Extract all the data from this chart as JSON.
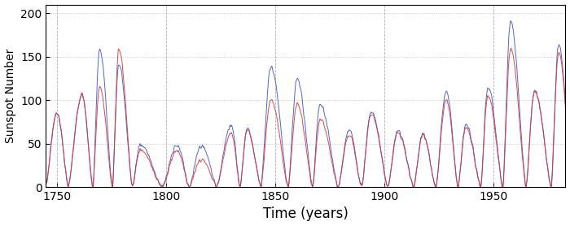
{
  "title": "",
  "xlabel": "Time (years)",
  "ylabel": "Sunspot Number",
  "xlim": [
    1745,
    1983
  ],
  "ylim": [
    0,
    210
  ],
  "yticks": [
    0,
    50,
    100,
    150,
    200
  ],
  "xticks": [
    1750,
    1800,
    1850,
    1900,
    1950
  ],
  "grid_color": "#aaaaaa",
  "vline_color": "#8888aa",
  "vlines": [
    1750,
    1800,
    1850,
    1900,
    1950
  ],
  "blue_color": "#5566cc",
  "red_color": "#dd3333",
  "background_color": "#ffffff",
  "figsize": [
    7.0,
    2.78
  ],
  "dpi": 100,
  "xlabel_fontsize": 12,
  "ylabel_fontsize": 10,
  "tick_fontsize": 10,
  "linewidth": 0.7
}
